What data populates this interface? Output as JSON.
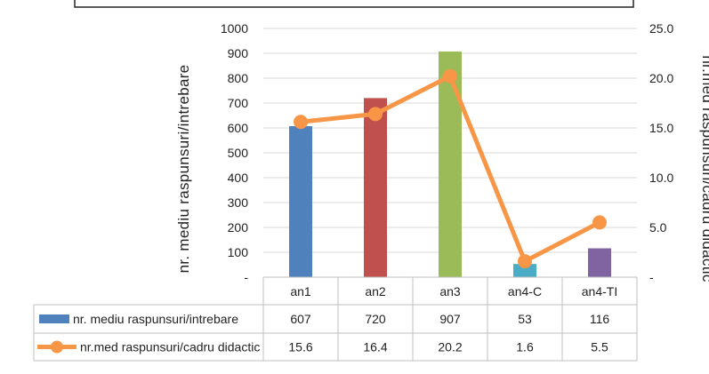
{
  "chart_data": {
    "type": "bar+line",
    "categories": [
      "an1",
      "an2",
      "an3",
      "an4-C",
      "an4-TI"
    ],
    "series": [
      {
        "name": "nr. mediu raspunsuri/intrebare",
        "type": "bar",
        "axis": "left",
        "values": [
          607,
          720,
          907,
          53,
          116
        ],
        "labels": [
          "607",
          "720",
          "907",
          "53",
          "116"
        ],
        "colors": [
          "#4f81bd",
          "#c0504d",
          "#9bbb59",
          "#4bacc6",
          "#8064a2"
        ]
      },
      {
        "name": "nr.med raspunsuri/cadru didactic",
        "type": "line",
        "axis": "right",
        "values": [
          15.6,
          16.4,
          20.2,
          1.6,
          5.5
        ],
        "labels": [
          "15.6",
          "16.4",
          "20.2",
          "1.6",
          "5.5"
        ],
        "color": "#f79646"
      }
    ],
    "y_left": {
      "label": "nr. mediu raspunsuri/intrebare",
      "ylim": [
        0,
        1000
      ],
      "ticks": [
        "-",
        "100",
        "200",
        "300",
        "400",
        "500",
        "600",
        "700",
        "800",
        "900",
        "1000"
      ]
    },
    "y_right": {
      "label": "nr.med raspunsuri/cadru didactic",
      "ylim": [
        0,
        25
      ],
      "ticks": [
        "-",
        "5.0",
        "10.0",
        "15.0",
        "20.0",
        "25.0"
      ]
    },
    "grid": "horizontal",
    "legend": "data-table"
  }
}
